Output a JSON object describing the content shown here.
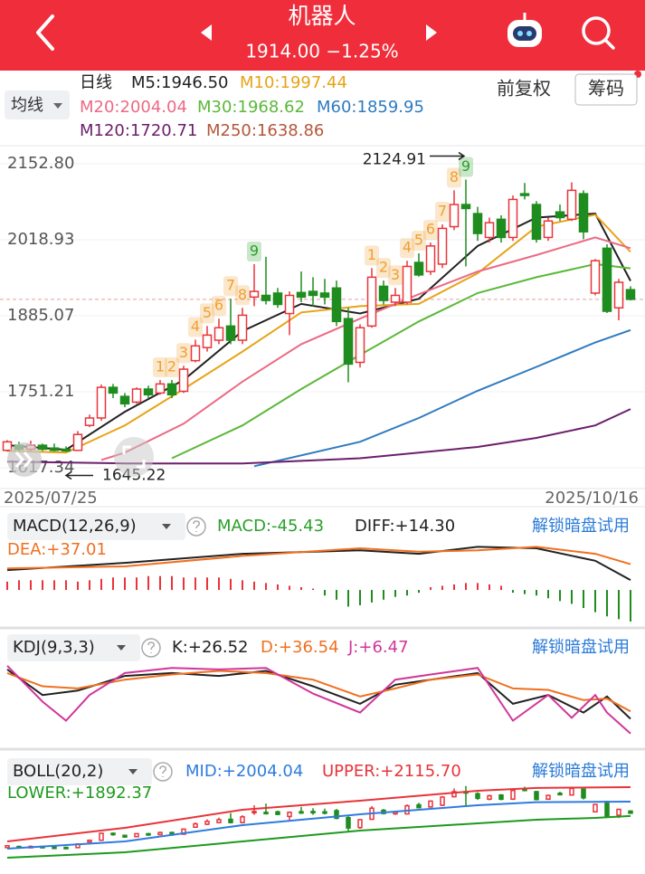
{
  "header": {
    "title": "机器人",
    "quote": "1914.00 −1.25%"
  },
  "toolbar": {
    "ma_selector": "均线",
    "period": "日线",
    "adjust": "前复权",
    "chips": "筹码"
  },
  "chart_data": [
    {
      "type": "candlestick",
      "date_start": "2025/07/25",
      "date_end": "2025/10/16",
      "ylim": [
        1617.34,
        2152.8
      ],
      "yticks": [
        {
          "value": 2152.8,
          "label": "2152.80"
        },
        {
          "value": 2018.93,
          "label": "2018.93"
        },
        {
          "value": 1885.07,
          "label": "1885.07"
        },
        {
          "value": 1751.21,
          "label": "1751.21"
        },
        {
          "value": 1617.34,
          "label": "1617.34"
        }
      ],
      "grid": true,
      "up_color": "#e8343a",
      "down_color": "#1e8c1e",
      "candles": {
        "open": [
          1648,
          1657,
          1650,
          1657,
          1652,
          1650,
          1648,
          1692,
          1705,
          1759,
          1743,
          1733,
          1756,
          1749,
          1765,
          1752,
          1806,
          1829,
          1842,
          1867,
          1842,
          1918,
          1921,
          1925,
          1889,
          1926,
          1928,
          1925,
          1934,
          1880,
          1803,
          1867,
          1937,
          1909,
          1909,
          1979,
          1963,
          1976,
          2042,
          2081,
          2065,
          2023,
          2055,
          2023,
          2100,
          2081,
          2023,
          2068,
          2055,
          2100,
          1925,
          2004,
          1899,
          1931
        ],
        "high": [
          1666,
          1663,
          1665,
          1660,
          1660,
          1655,
          1682,
          1711,
          1764,
          1765,
          1749,
          1759,
          1762,
          1772,
          1772,
          1797,
          1843,
          1867,
          1880,
          1915,
          1899,
          1976,
          1989,
          1934,
          1928,
          1963,
          1953,
          1950,
          1947,
          1899,
          1870,
          1969,
          1947,
          1934,
          1982,
          1995,
          2014,
          2046,
          2106,
          2124.91,
          2077,
          2058,
          2062,
          2097,
          2119,
          2087,
          2058,
          2081,
          2120,
          2106,
          1985,
          2011,
          1950,
          1937
        ],
        "low": [
          1646,
          1647,
          1647,
          1647,
          1646,
          1645.22,
          1647,
          1689,
          1700,
          1740,
          1724,
          1730,
          1740,
          1746,
          1740,
          1749,
          1803,
          1822,
          1835,
          1835,
          1835,
          1902,
          1905,
          1899,
          1851,
          1909,
          1902,
          1905,
          1867,
          1768,
          1794,
          1864,
          1905,
          1902,
          1905,
          1954,
          1957,
          1969,
          2036,
          1972,
          2017,
          2014,
          2014,
          2017,
          2090,
          2014,
          2017,
          2052,
          2052,
          2020,
          1921,
          1890,
          1877,
          1912
        ],
        "close": [
          1663,
          1650,
          1657,
          1650,
          1648,
          1647,
          1676,
          1705,
          1759,
          1749,
          1730,
          1756,
          1746,
          1765,
          1746,
          1791,
          1832,
          1851,
          1864,
          1842,
          1886,
          1928,
          1912,
          1905,
          1921,
          1918,
          1921,
          1918,
          1875,
          1800,
          1864,
          1953,
          1912,
          1921,
          1972,
          1957,
          2008,
          2039,
          2081,
          2074,
          2030,
          2049,
          2023,
          2090,
          2097,
          2020,
          2052,
          2058,
          2106,
          2033,
          1982,
          1893,
          1944,
          1914
        ]
      },
      "sequence_labels": [
        null,
        null,
        null,
        null,
        null,
        null,
        null,
        null,
        null,
        null,
        null,
        null,
        null,
        {
          "label": "1",
          "color": "#f0a030"
        },
        {
          "label": "2",
          "color": "#f0a030"
        },
        {
          "label": "3",
          "color": "#f0a030"
        },
        {
          "label": "4",
          "color": "#f0a030"
        },
        {
          "label": "5",
          "color": "#f0a030"
        },
        {
          "label": "6",
          "color": "#f0a030"
        },
        {
          "label": "7",
          "color": "#f0a030"
        },
        {
          "label": "8",
          "color": "#f0a030"
        },
        {
          "label": "9",
          "color": "#2aa02a"
        },
        null,
        null,
        null,
        null,
        null,
        null,
        null,
        null,
        null,
        {
          "label": "1",
          "color": "#f0a030"
        },
        {
          "label": "2",
          "color": "#f0a030"
        },
        {
          "label": "3",
          "color": "#f0a030"
        },
        {
          "label": "4",
          "color": "#f0a030"
        },
        {
          "label": "5",
          "color": "#f0a030"
        },
        {
          "label": "6",
          "color": "#f0a030"
        },
        {
          "label": "7",
          "color": "#f0a030"
        },
        {
          "label": "8",
          "color": "#f0a030"
        },
        {
          "label": "9",
          "color": "#2aa02a"
        },
        null,
        null,
        null,
        null,
        null,
        null,
        null,
        null,
        null,
        null,
        null,
        null,
        null,
        null
      ],
      "series": [
        {
          "name": "M5:1946.50",
          "color": "#222222",
          "x": [
            0,
            5,
            10,
            15,
            20,
            25,
            30,
            35,
            40,
            45,
            50,
            53
          ],
          "values": [
            1657,
            1649,
            1716,
            1772,
            1858,
            1906,
            1889,
            1915,
            2008,
            2058,
            2065,
            1946.5
          ]
        },
        {
          "name": "M10:1997.44",
          "color": "#e8a317",
          "x": [
            0,
            5,
            10,
            15,
            20,
            25,
            30,
            35,
            40,
            45,
            50,
            53
          ],
          "values": [
            1647,
            1644,
            1692,
            1756,
            1822,
            1891,
            1902,
            1906,
            1960,
            2042,
            2063,
            1997.44
          ]
        },
        {
          "name": "M20:2004.04",
          "color": "#ec6a84",
          "x": [
            8,
            10,
            15,
            20,
            25,
            30,
            35,
            40,
            45,
            50,
            53
          ],
          "values": [
            1631,
            1644,
            1695,
            1769,
            1835,
            1880,
            1923,
            1963,
            1992,
            2023,
            2004.04
          ]
        },
        {
          "name": "M30:1968.62",
          "color": "#5cb83a",
          "x": [
            14,
            20,
            25,
            30,
            35,
            40,
            45,
            50,
            53
          ],
          "values": [
            1634,
            1692,
            1756,
            1816,
            1875,
            1925,
            1953,
            1976,
            1968.62
          ]
        },
        {
          "name": "M60:1859.95",
          "color": "#2f7bbf",
          "x": [
            21,
            30,
            35,
            40,
            45,
            50,
            53
          ],
          "values": [
            1620,
            1663,
            1705,
            1753,
            1795,
            1838,
            1859.95
          ]
        },
        {
          "name": "M120:1720.71",
          "color": "#6b1f6b",
          "x": [
            0,
            10,
            20,
            30,
            40,
            45,
            50,
            53
          ],
          "values": [
            1628,
            1625,
            1625,
            1634,
            1654,
            1670,
            1692,
            1720.71
          ]
        },
        {
          "name": "M250:1638.86",
          "color": "#b5573a"
        }
      ]
    },
    {
      "type": "macd",
      "title": "MACD(12,26,9)",
      "unlock": "解锁暗盘试用",
      "ylim": [
        -52,
        73
      ],
      "histogram": {
        "name": "MACD:-45.43",
        "color": "#2aa02a",
        "values": [
          12,
          14,
          14,
          14,
          14,
          14,
          12,
          14,
          16,
          18,
          18,
          18,
          20,
          20,
          20,
          18,
          18,
          18,
          18,
          16,
          14,
          12,
          10,
          8,
          6,
          4,
          2,
          -8,
          -14,
          -24,
          -22,
          -18,
          -14,
          -10,
          -8,
          -4,
          4,
          6,
          8,
          10,
          10,
          8,
          6,
          -4,
          -6,
          -8,
          -12,
          -16,
          -20,
          -26,
          -32,
          -38,
          -42,
          -45.43
        ]
      },
      "series": [
        {
          "name": "DIFF:+14.30",
          "color": "#222222",
          "x": [
            0,
            10,
            20,
            30,
            35,
            40,
            45,
            50,
            53
          ],
          "values": [
            28.6,
            39,
            52,
            57,
            52,
            62,
            60,
            42,
            14.3
          ]
        },
        {
          "name": "DEA:+37.01",
          "color": "#f07020",
          "x": [
            0,
            10,
            20,
            30,
            35,
            40,
            45,
            50,
            53
          ],
          "values": [
            31,
            34,
            49,
            60,
            55,
            57,
            62,
            52,
            37.01
          ]
        }
      ]
    },
    {
      "type": "kdj",
      "title": "KDJ(9,3,3)",
      "unlock": "解锁暗盘试用",
      "ylim": [
        -10,
        100
      ],
      "series": [
        {
          "name": "K:+26.52",
          "color": "#222222",
          "x": [
            0,
            3,
            6,
            10,
            14,
            18,
            22,
            26,
            30,
            33,
            36,
            40,
            43,
            46,
            49,
            51,
            53
          ],
          "values": [
            94,
            59,
            65,
            85,
            89,
            85,
            92,
            71,
            47,
            73,
            80,
            89,
            47,
            59,
            35,
            57,
            26.52
          ]
        },
        {
          "name": "D:+36.54",
          "color": "#f07020",
          "x": [
            0,
            3,
            6,
            10,
            14,
            18,
            22,
            26,
            30,
            33,
            36,
            40,
            43,
            46,
            49,
            51,
            53
          ],
          "values": [
            89,
            71,
            68,
            80,
            87,
            92,
            89,
            80,
            57,
            68,
            80,
            87,
            68,
            66,
            52,
            54,
            36.54
          ]
        },
        {
          "name": "J:+6.47",
          "color": "#d0369a",
          "x": [
            0,
            3,
            5,
            7,
            10,
            14,
            18,
            22,
            26,
            30,
            33,
            36,
            40,
            43,
            46,
            48,
            50,
            51,
            53
          ],
          "values": [
            99,
            50,
            24,
            59,
            89,
            96,
            94,
            96,
            61,
            35,
            80,
            87,
            96,
            24,
            59,
            28,
            59,
            35,
            6.47
          ]
        }
      ]
    },
    {
      "type": "boll",
      "title": "BOLL(20,2)",
      "unlock": "解锁暗盘试用",
      "ylim": [
        1556,
        2130
      ],
      "series": [
        {
          "name": "MID:+2004.04",
          "color": "#2f7bdf",
          "x": [
            0,
            10,
            20,
            30,
            40,
            45,
            53
          ],
          "values": [
            1640,
            1696,
            1822,
            1906,
            1976,
            2000,
            2004.04
          ]
        },
        {
          "name": "UPPER:+2115.70",
          "color": "#e8343a",
          "x": [
            0,
            10,
            20,
            30,
            40,
            45,
            53
          ],
          "values": [
            1696,
            1801,
            1941,
            2011,
            2088,
            2110,
            2115.7
          ]
        },
        {
          "name": "LOWER:+1892.37",
          "color": "#1e9a1e",
          "x": [
            0,
            10,
            20,
            30,
            40,
            45,
            50,
            53
          ],
          "values": [
            1570,
            1612,
            1696,
            1780,
            1836,
            1864,
            1878,
            1892.37
          ]
        }
      ]
    }
  ]
}
